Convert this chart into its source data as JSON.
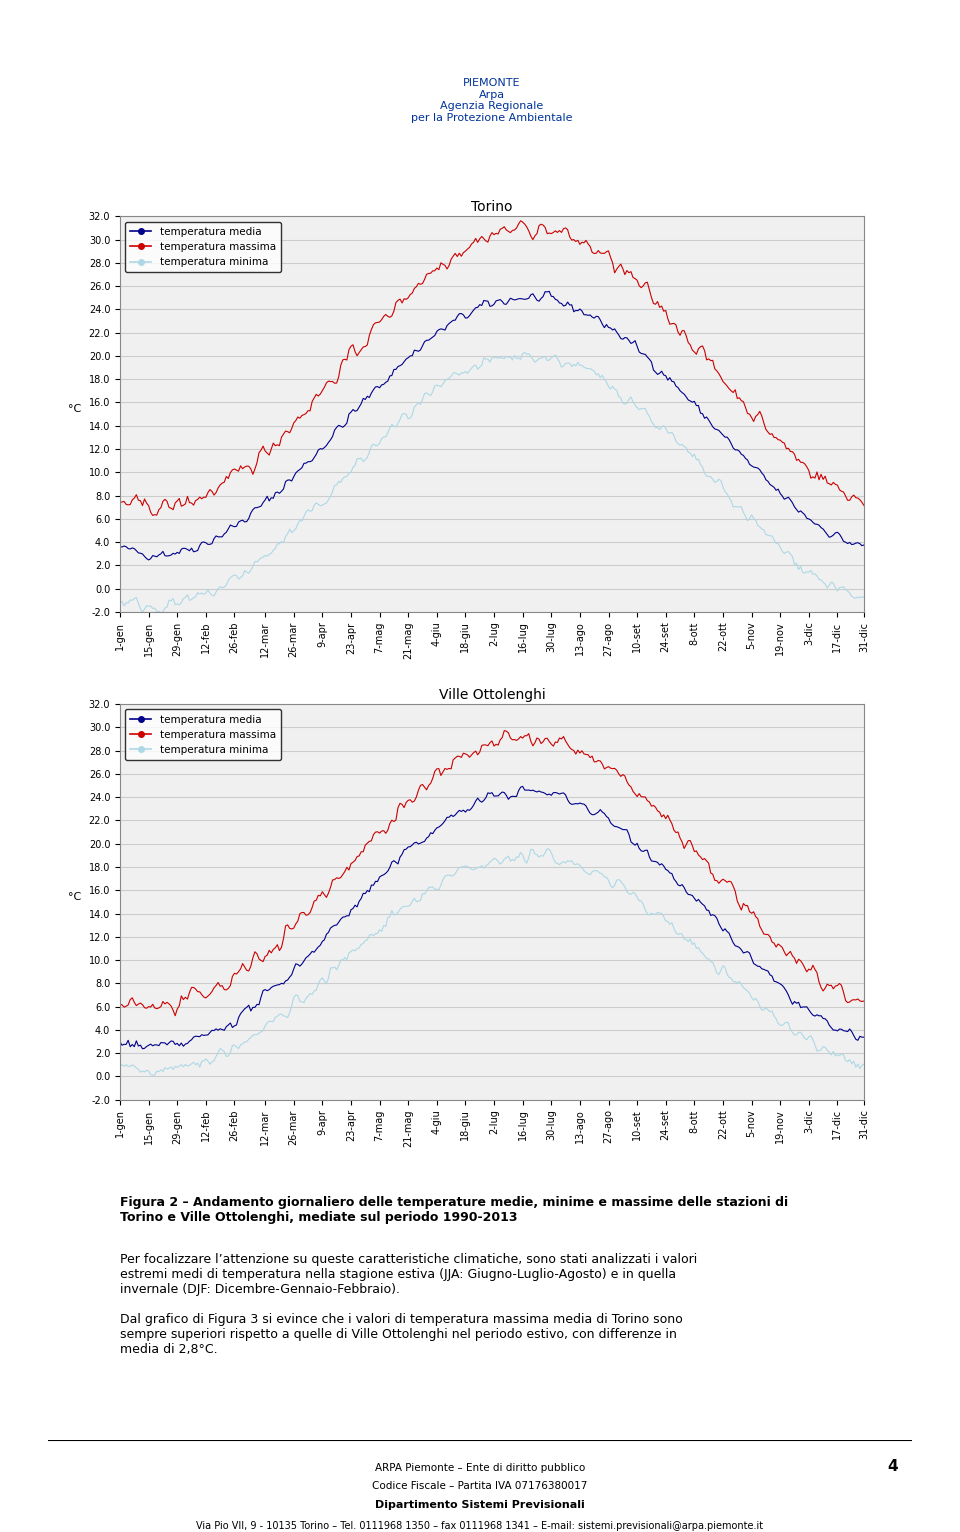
{
  "title1": "Torino",
  "title2": "Ville Ottolenghi",
  "legend_labels": [
    "temperatura media",
    "temperatura massima",
    "temperatura minima"
  ],
  "colors": {
    "media": "#00008B",
    "massima": "#CC0000",
    "minima": "#ADD8E6"
  },
  "ylim": [
    -2.0,
    32.0
  ],
  "yticks": [
    -2.0,
    0.0,
    2.0,
    4.0,
    6.0,
    8.0,
    10.0,
    12.0,
    14.0,
    16.0,
    18.0,
    20.0,
    22.0,
    24.0,
    26.0,
    28.0,
    30.0,
    32.0
  ],
  "ylabel": "°C",
  "xtick_labels": [
    "1-gen",
    "15-gen",
    "29-gen",
    "12-feb",
    "26-feb",
    "12-mar",
    "26-mar",
    "9-apr",
    "23-apr",
    "7-mag",
    "21-mag",
    "4-giu",
    "18-giu",
    "2-lug",
    "16-lug",
    "30-lug",
    "13-ago",
    "27-ago",
    "10-set",
    "24-set",
    "8-ott",
    "22-ott",
    "5-nov",
    "19-nov",
    "3-dic",
    "17-dic",
    "31-dic"
  ],
  "background_color": "#ffffff",
  "grid_color": "#cccccc",
  "text_footer1": "ARPA Piemonte – Ente di diritto pubblico",
  "text_footer2": "Codice Fiscale – Partita IVA 07176380017",
  "text_footer3": "Dipartimento Sistemi Previsionali",
  "text_footer4": "Via Pio VII, 9 - 10135 Torino – Tel. 0111968 1350 – fax 0111968 1341 – E-mail: sistemi.previsionali@arpa.piemonte.it",
  "page_number": "4",
  "caption_title": "Figura 2 – Andamento giornaliero delle temperature medie, minime e massime delle stazioni di",
  "caption_line2": "Torino e Ville Ottolenghi, mediate sul periodo 1990-2013",
  "body_text1": "Per focalizzare l’attenzione su queste caratteristiche climatiche, sono stati analizzati i valori",
  "body_text2": "estremi medi di temperatura nella stagione estiva (JJA: Giugno-Luglio-Agosto) e in quella",
  "body_text3": "invernale (DJF: Dicembre-Gennaio-Febbraio).",
  "body_text4": "Dal grafico di Figura 3 si evince che i valori di temperatura massima media di Torino sono",
  "body_text5": "sempre superiori rispetto a quelle di Ville Ottolenghi nel periodo estivo, con differenze in",
  "body_text6": "media di 2,8°C."
}
